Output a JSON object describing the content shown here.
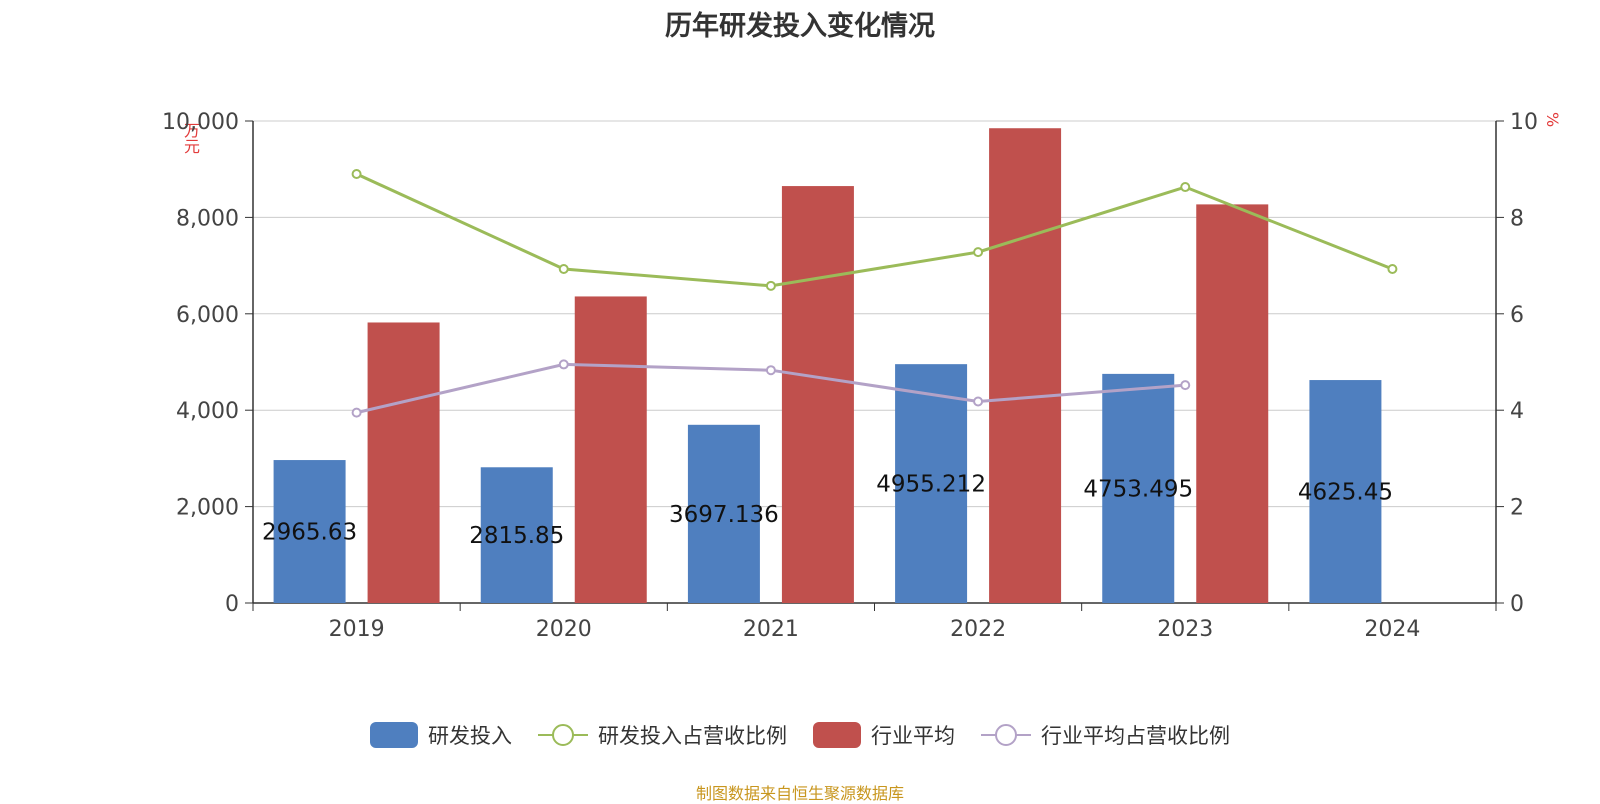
{
  "chart_data": {
    "type": "bar",
    "title": "历年研发投入变化情况",
    "categories": [
      "2019",
      "2020",
      "2021",
      "2022",
      "2023",
      "2024"
    ],
    "y_left": {
      "unit": "万元",
      "ylim": [
        0,
        10000
      ],
      "ticks": [
        "0",
        "2,000",
        "4,000",
        "6,000",
        "8,000",
        "10,000"
      ]
    },
    "y_right": {
      "unit": "%",
      "ylim": [
        0,
        10
      ],
      "ticks": [
        "0",
        "2",
        "4",
        "6",
        "8",
        "10"
      ]
    },
    "series": [
      {
        "name": "研发投入",
        "kind": "bar",
        "axis": "left",
        "color": "#4f7fbf",
        "values": [
          2965.63,
          2815.85,
          3697.136,
          4955.212,
          4753.495,
          4625.45
        ],
        "labels": [
          "2965.63",
          "2815.85",
          "3697.136",
          "4955.212",
          "4753.495",
          "4625.45"
        ]
      },
      {
        "name": "研发投入占营收比例",
        "kind": "line",
        "axis": "right",
        "color": "#9bbb59",
        "values": [
          8.9,
          6.93,
          6.58,
          7.28,
          8.63,
          6.93
        ]
      },
      {
        "name": "行业平均",
        "kind": "bar",
        "axis": "left",
        "color": "#c0504d",
        "values": [
          5820,
          6360,
          8650,
          9850,
          8270,
          null
        ]
      },
      {
        "name": "行业平均占营收比例",
        "kind": "line",
        "axis": "right",
        "color": "#b3a2c7",
        "values": [
          3.95,
          4.95,
          4.83,
          4.18,
          4.52,
          null
        ]
      }
    ],
    "grid": true,
    "legend_position": "bottom"
  },
  "source": "制图数据来自恒生聚源数据库"
}
